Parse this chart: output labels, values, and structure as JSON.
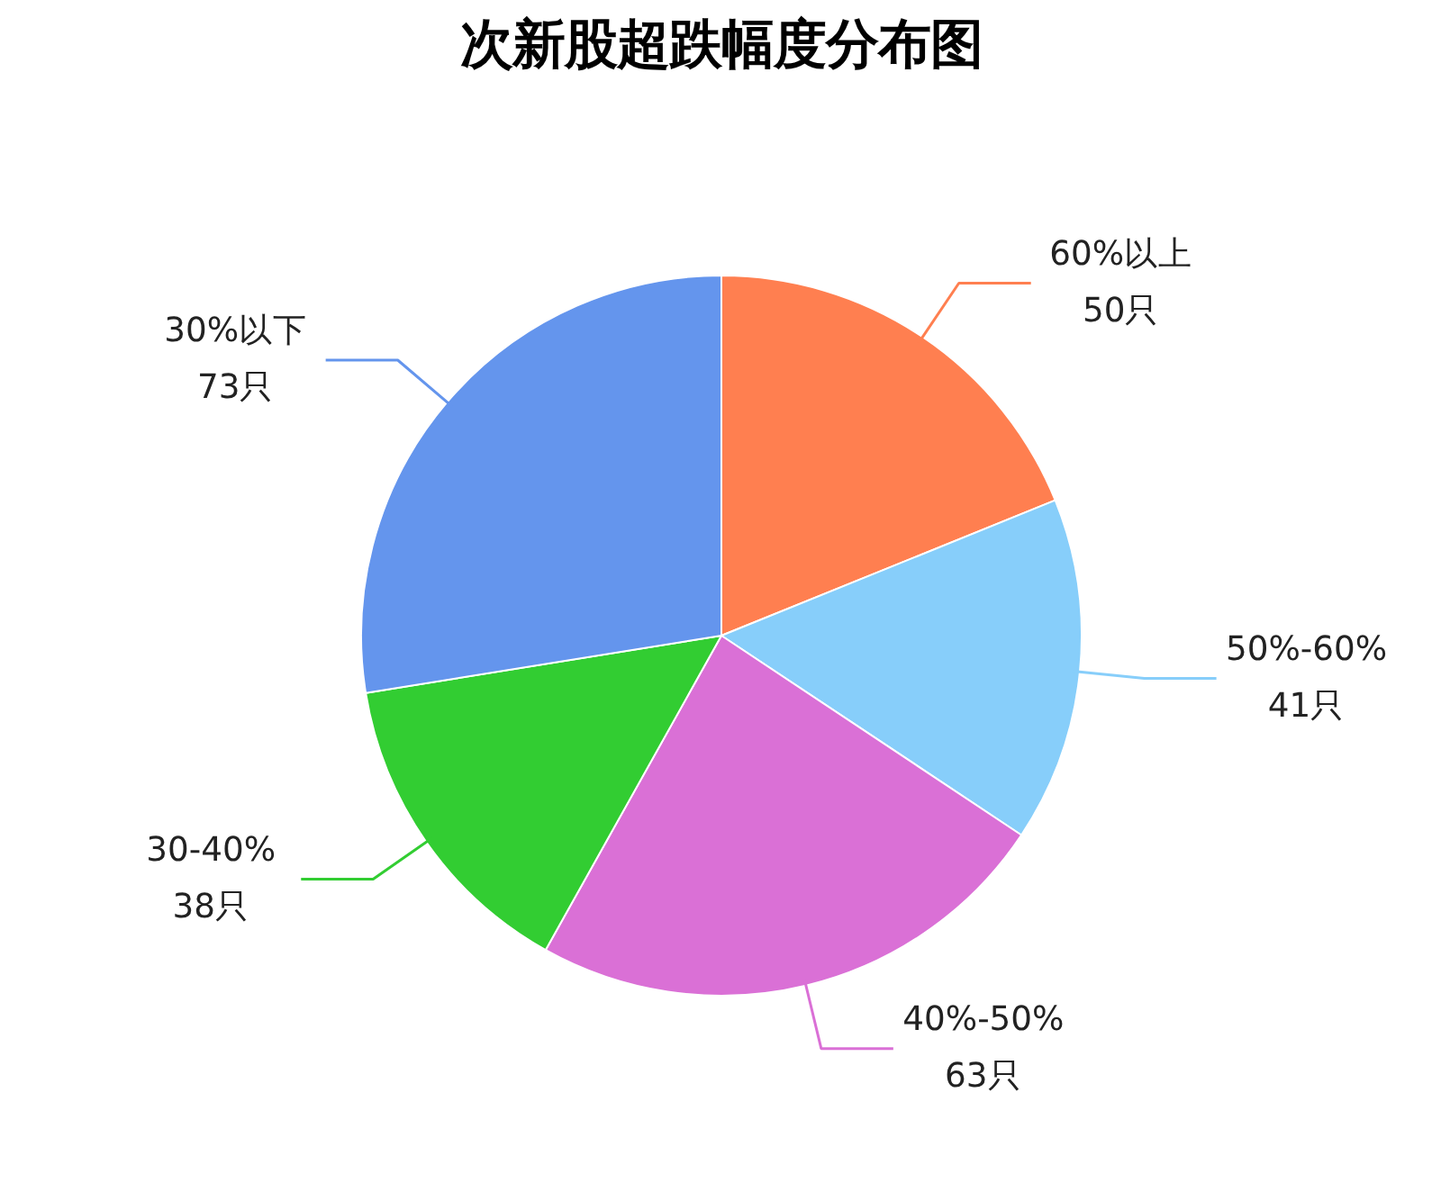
{
  "chart_data": {
    "type": "pie",
    "title": "次新股超跌幅度分布图",
    "categories": [
      "60%以上",
      "50%-60%",
      "40%-50%",
      "30-40%",
      "30%以下"
    ],
    "values": [
      50,
      41,
      63,
      38,
      73
    ],
    "value_labels": [
      "50只",
      "41只",
      "63只",
      "38只",
      "73只"
    ],
    "colors": [
      "#ff7f50",
      "#87cefa",
      "#da70d6",
      "#32cd32",
      "#6495ed"
    ]
  }
}
